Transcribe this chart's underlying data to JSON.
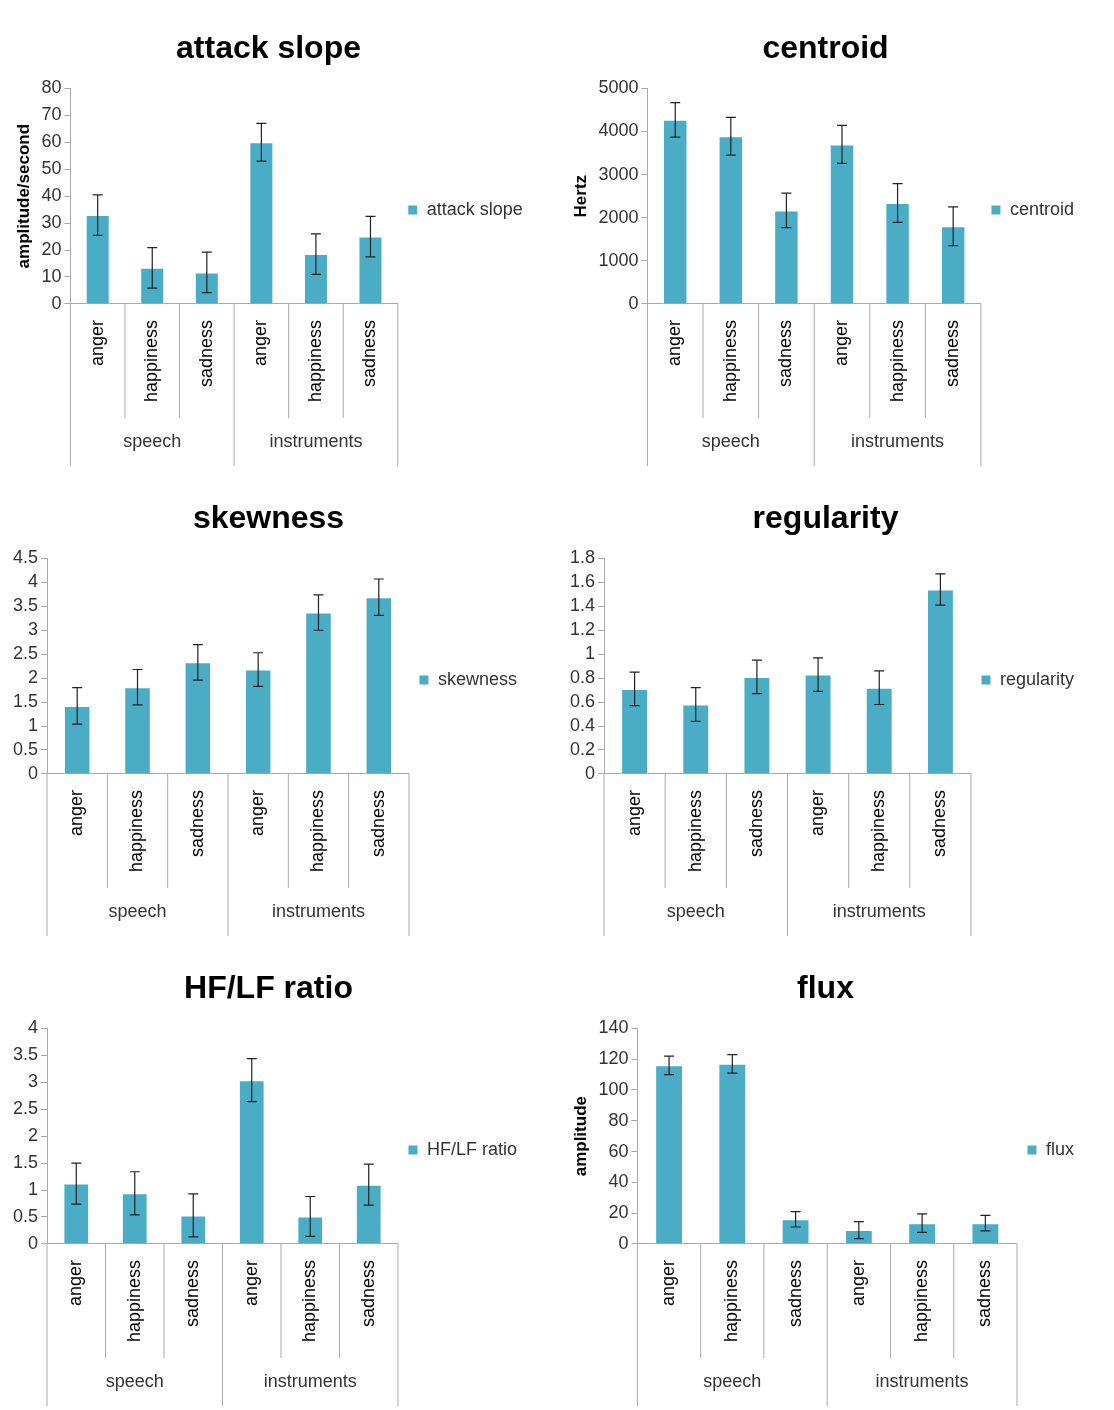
{
  "chart_data": [
    {
      "type": "bar",
      "title": "attack slope",
      "ylabel": "amplitude/second",
      "categories": [
        "anger",
        "happiness",
        "sadness",
        "anger",
        "happiness",
        "sadness"
      ],
      "series": [
        {
          "name": "attack slope",
          "color": "#4bacc6",
          "values": [
            33,
            13.4,
            11.7,
            60,
            18.5,
            25
          ],
          "errors": [
            7.5,
            7.5,
            7.5,
            7,
            7.5,
            7.5
          ]
        }
      ],
      "ylim": [
        0,
        80
      ],
      "yticks": [
        0,
        10,
        20,
        30,
        40,
        50,
        60,
        70,
        80
      ],
      "grid": false,
      "legend": "right",
      "annotations": [
        "speech",
        "instruments"
      ]
    },
    {
      "type": "bar",
      "title": "centroid",
      "ylabel": "Hertz",
      "categories": [
        "anger",
        "happiness",
        "sadness",
        "anger",
        "happiness",
        "sadness"
      ],
      "series": [
        {
          "name": "centroid",
          "color": "#4bacc6",
          "values": [
            4270,
            3890,
            2170,
            3700,
            2340,
            1800
          ],
          "errors": [
            400,
            440,
            400,
            440,
            450,
            450
          ]
        }
      ],
      "ylim": [
        0,
        5000
      ],
      "yticks": [
        0,
        1000,
        2000,
        3000,
        4000,
        5000
      ],
      "grid": false,
      "legend": "right",
      "annotations": [
        "speech",
        "instruments"
      ]
    },
    {
      "type": "bar",
      "title": "skewness",
      "categories": [
        "anger",
        "happiness",
        "sadness",
        "anger",
        "happiness",
        "sadness"
      ],
      "series": [
        {
          "name": "skewness",
          "color": "#4bacc6",
          "values": [
            1.42,
            1.81,
            2.33,
            2.18,
            3.37,
            3.69
          ],
          "errors": [
            0.38,
            0.37,
            0.37,
            0.35,
            0.37,
            0.38
          ]
        }
      ],
      "ylim": [
        0,
        4.5
      ],
      "yticks": [
        0,
        0.5,
        1,
        1.5,
        2,
        2.5,
        3,
        3.5,
        4,
        4.5
      ],
      "grid": false,
      "legend": "right",
      "annotations": [
        "speech",
        "instruments"
      ]
    },
    {
      "type": "bar",
      "title": "regularity",
      "categories": [
        "anger",
        "happiness",
        "sadness",
        "anger",
        "happiness",
        "sadness"
      ],
      "series": [
        {
          "name": "regularity",
          "color": "#4bacc6",
          "values": [
            0.71,
            0.58,
            0.81,
            0.83,
            0.72,
            1.54
          ],
          "errors": [
            0.14,
            0.14,
            0.14,
            0.14,
            0.14,
            0.13
          ]
        }
      ],
      "ylim": [
        0,
        1.8
      ],
      "yticks": [
        0,
        0.2,
        0.4,
        0.6,
        0.8,
        1,
        1.2,
        1.4,
        1.6,
        1.8
      ],
      "grid": false,
      "legend": "right",
      "annotations": [
        "speech",
        "instruments"
      ]
    },
    {
      "type": "bar",
      "title": "HF/LF ratio",
      "categories": [
        "anger",
        "happiness",
        "sadness",
        "anger",
        "happiness",
        "sadness"
      ],
      "series": [
        {
          "name": "HF/LF ratio",
          "color": "#4bacc6",
          "values": [
            1.12,
            0.94,
            0.53,
            3.04,
            0.51,
            1.1
          ],
          "errors": [
            0.38,
            0.4,
            0.4,
            0.4,
            0.37,
            0.38
          ]
        }
      ],
      "ylim": [
        0,
        4
      ],
      "yticks": [
        0,
        0.5,
        1,
        1.5,
        2,
        2.5,
        3,
        3.5,
        4
      ],
      "grid": false,
      "legend": "right",
      "annotations": [
        "speech",
        "instruments"
      ]
    },
    {
      "type": "bar",
      "title": "flux",
      "ylabel": "amplitude",
      "categories": [
        "anger",
        "happiness",
        "sadness",
        "anger",
        "happiness",
        "sadness"
      ],
      "series": [
        {
          "name": "flux",
          "color": "#4bacc6",
          "values": [
            116,
            117,
            16,
            9,
            13.5,
            13.5
          ],
          "errors": [
            6,
            6,
            5,
            5.5,
            6,
            5
          ]
        }
      ],
      "ylim": [
        0,
        140
      ],
      "yticks": [
        0,
        20,
        40,
        60,
        80,
        100,
        120,
        140
      ],
      "grid": false,
      "legend": "right",
      "annotations": [
        "speech",
        "instruments"
      ]
    }
  ]
}
